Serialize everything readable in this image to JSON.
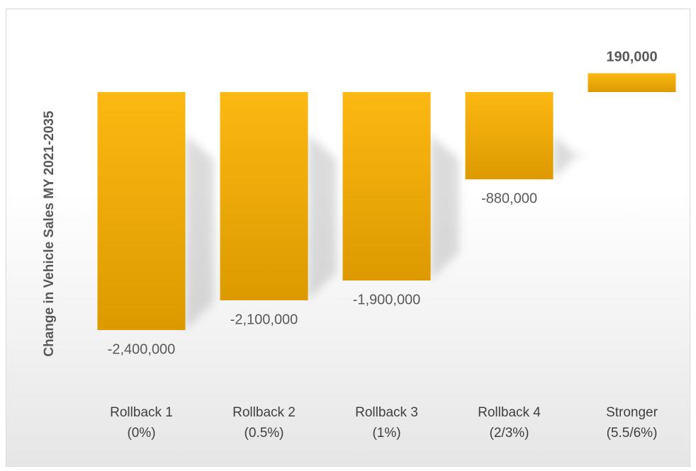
{
  "chart_data": {
    "type": "bar",
    "y_label": "Change in Vehicle Sales MY 2021-2035",
    "categories": [
      "Rollback 1\n(0%)",
      "Rollback 2\n(0.5%)",
      "Rollback 3\n(1%)",
      "Rollback 4\n(2/3%)",
      "Stronger\n(5.5/6%)"
    ],
    "values": [
      -2400000,
      -2100000,
      -1900000,
      -880000,
      190000
    ],
    "value_labels": [
      "-2,400,000",
      "-2,100,000",
      "-1,900,000",
      "-880,000",
      "190,000"
    ],
    "color": "#f5ac00",
    "ylim": [
      -3000000,
      500000
    ]
  }
}
